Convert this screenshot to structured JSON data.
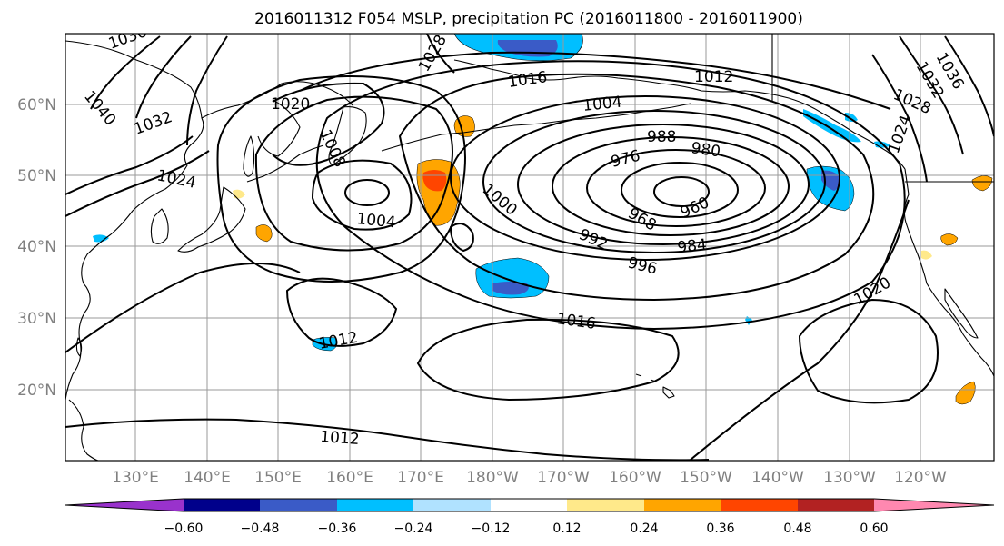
{
  "title": "2016011312 F054 MSLP, precipitation PC (2016011800 - 2016011900)",
  "lat_labels": [
    "60°N",
    "50°N",
    "40°N",
    "30°N",
    "20°N"
  ],
  "lon_labels": [
    "130°E",
    "140°E",
    "150°E",
    "160°E",
    "170°E",
    "180°W",
    "170°W",
    "160°W",
    "150°W",
    "140°W",
    "130°W",
    "120°W"
  ],
  "contour_labels": [
    "1036",
    "1040",
    "1032",
    "1028",
    "1024",
    "1020",
    "1016",
    "1012",
    "1008",
    "1004",
    "1000",
    "1004",
    "988",
    "980",
    "976",
    "968",
    "960",
    "992",
    "984",
    "996",
    "1016",
    "1012",
    "1012",
    "1020",
    "1024",
    "1028",
    "1032",
    "1036"
  ],
  "colorbar": {
    "ticks": [
      "−0.60",
      "−0.48",
      "−0.36",
      "−0.24",
      "−0.12",
      "0.12",
      "0.24",
      "0.36",
      "0.48",
      "0.60"
    ],
    "colors": [
      "#9932cc",
      "#00008b",
      "#3a5bc7",
      "#00bfff",
      "#b0e2ff",
      "#ffffff",
      "#ffe98a",
      "#ffa500",
      "#ff4500",
      "#b22222",
      "#ff88b0"
    ]
  }
}
